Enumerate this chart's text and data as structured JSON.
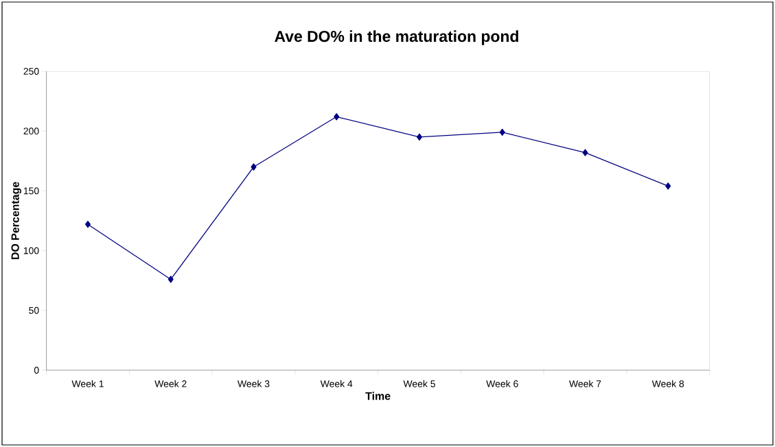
{
  "chart_data": {
    "type": "line",
    "title": "Ave DO% in the maturation pond",
    "xlabel": "Time",
    "ylabel": "DO Percentage",
    "categories": [
      "Week 1",
      "Week 2",
      "Week 3",
      "Week 4",
      "Week 5",
      "Week 6",
      "Week 7",
      "Week 8"
    ],
    "series": [
      {
        "color": "#000080",
        "values": [
          122,
          76,
          170,
          212,
          195,
          199,
          182,
          154
        ]
      }
    ],
    "ylim": [
      0,
      250
    ],
    "yticks": [
      0,
      50,
      100,
      150,
      200,
      250
    ],
    "marker": "diamond",
    "line_style": "solid"
  }
}
